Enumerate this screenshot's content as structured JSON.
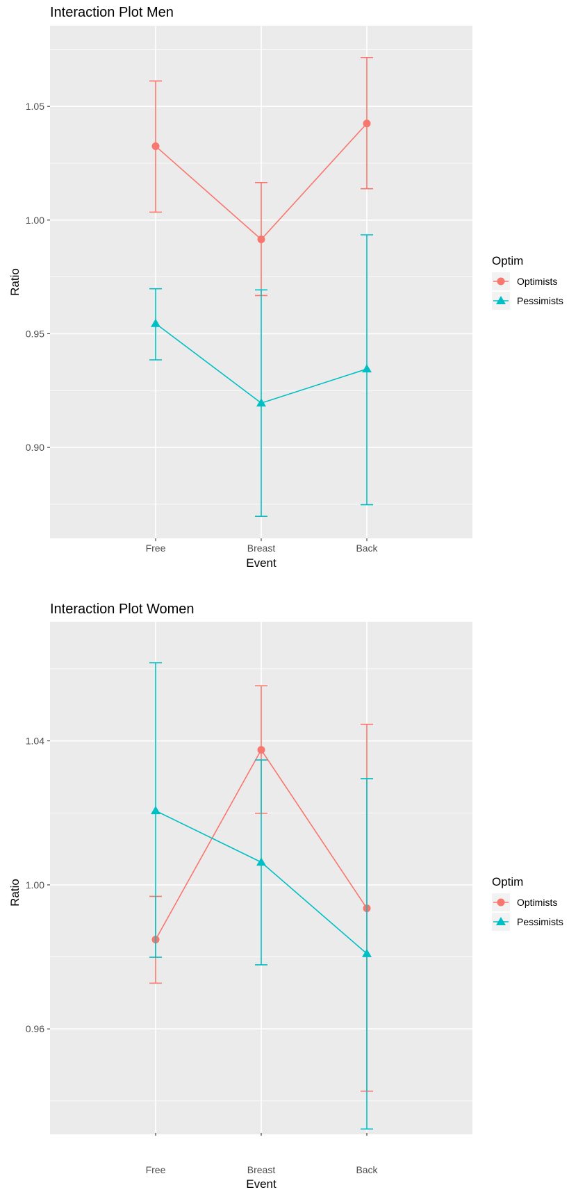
{
  "chart_data": [
    {
      "type": "line",
      "title": "Interaction Plot Men",
      "xlabel": "Event",
      "ylabel": "Ratio",
      "categories": [
        "Free",
        "Breast",
        "Back"
      ],
      "ylim": [
        0.86,
        1.0855
      ],
      "yticks": [
        0.9,
        0.95,
        1.0,
        1.05
      ],
      "ytick_labels": [
        "0.90",
        "0.95",
        "1.00",
        "1.05"
      ],
      "grid": true,
      "legend": {
        "title": "Optim",
        "position": "right"
      },
      "series": [
        {
          "name": "Optimists",
          "color": "#F8766D",
          "marker": "circle",
          "values": [
            1.0325,
            0.9915,
            1.0425
          ],
          "lower": [
            1.0035,
            0.9668,
            1.0138
          ],
          "upper": [
            1.0612,
            1.0165,
            1.0715
          ]
        },
        {
          "name": "Pessimists",
          "color": "#00BFC4",
          "marker": "triangle",
          "values": [
            0.9545,
            0.9195,
            0.9345
          ],
          "lower": [
            0.9385,
            0.8697,
            0.8748
          ],
          "upper": [
            0.9698,
            0.9693,
            0.9935
          ]
        }
      ]
    },
    {
      "type": "line",
      "title": "Interaction Plot Women",
      "xlabel": "Event",
      "ylabel": "Ratio",
      "categories": [
        "Free",
        "Breast",
        "Back"
      ],
      "ylim": [
        0.9311,
        1.0731
      ],
      "yticks": [
        0.96,
        1.0,
        1.04
      ],
      "ytick_labels": [
        "0.96",
        "1.00",
        "1.04"
      ],
      "grid": true,
      "legend": {
        "title": "Optim",
        "position": "right"
      },
      "series": [
        {
          "name": "Optimists",
          "color": "#F8766D",
          "marker": "circle",
          "values": [
            0.9848,
            1.0375,
            0.9935
          ],
          "lower": [
            0.9727,
            1.0199,
            0.9427
          ],
          "upper": [
            0.9968,
            1.0553,
            1.0446
          ]
        },
        {
          "name": "Pessimists",
          "color": "#00BFC4",
          "marker": "triangle",
          "values": [
            1.0206,
            1.0063,
            0.9809
          ],
          "lower": [
            0.9799,
            0.9778,
            0.9322
          ],
          "upper": [
            1.0617,
            1.0347,
            1.0295
          ]
        }
      ]
    }
  ]
}
